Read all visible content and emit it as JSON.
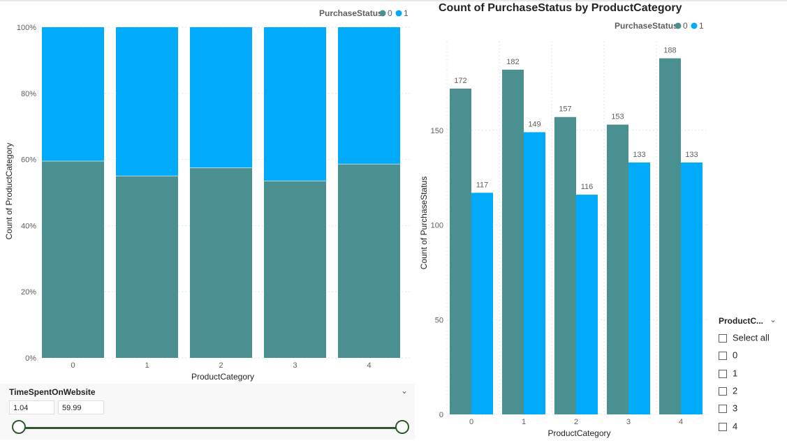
{
  "colors": {
    "status_0": "#4a9090",
    "status_1": "#01abfb",
    "grid": "#e5e5e5"
  },
  "chart_data": [
    {
      "type": "bar",
      "stacked": "100%",
      "title": "",
      "xlabel": "ProductCategory",
      "ylabel": "Count of ProductCategory",
      "legend_title": "PurchaseStatus",
      "legend_position": "top-right",
      "categories": [
        "0",
        "1",
        "2",
        "3",
        "4"
      ],
      "y_ticks": [
        "0%",
        "20%",
        "40%",
        "60%",
        "80%",
        "100%"
      ],
      "series": [
        {
          "name": "0",
          "values": [
            0.595,
            0.55,
            0.575,
            0.535,
            0.586
          ]
        },
        {
          "name": "1",
          "values": [
            0.405,
            0.45,
            0.425,
            0.465,
            0.414
          ]
        }
      ]
    },
    {
      "type": "bar",
      "title": "Count of PurchaseStatus by ProductCategory",
      "xlabel": "ProductCategory",
      "ylabel": "Count of PurchaseStatus",
      "legend_title": "PurchaseStatus",
      "legend_position": "top-left",
      "ylim": [
        0,
        200
      ],
      "y_ticks": [
        0,
        50,
        100,
        150
      ],
      "categories": [
        "0",
        "1",
        "2",
        "3",
        "4"
      ],
      "series": [
        {
          "name": "0",
          "values": [
            172,
            182,
            157,
            153,
            188
          ]
        },
        {
          "name": "1",
          "values": [
            117,
            149,
            116,
            133,
            133
          ]
        }
      ]
    }
  ],
  "time_slicer": {
    "title": "TimeSpentOnWebsite",
    "min_value": "1.04",
    "max_value": "59.99",
    "min_fraction": 0,
    "max_fraction": 1
  },
  "category_slicer": {
    "title": "ProductC...",
    "items": [
      "Select all",
      "0",
      "1",
      "2",
      "3",
      "4"
    ]
  }
}
